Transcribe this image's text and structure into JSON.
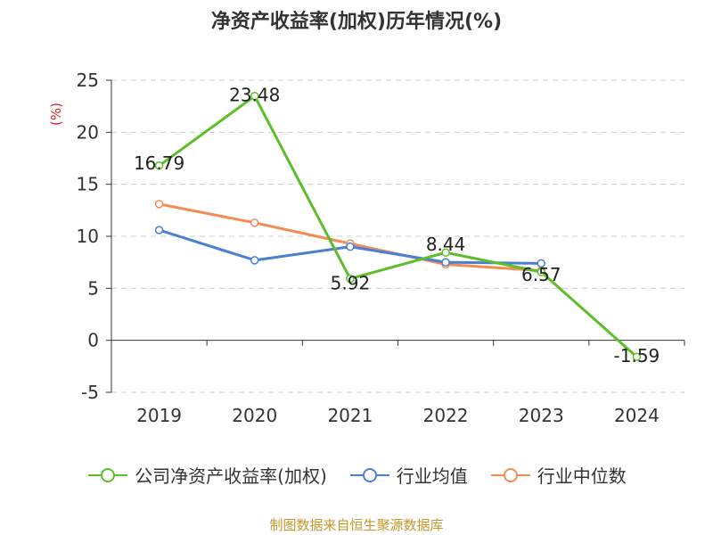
{
  "title": "净资产收益率(加权)历年情况(%)",
  "source": "制图数据来自恒生聚源数据库",
  "chart_data": {
    "type": "line",
    "title": "净资产收益率(加权)历年情况(%)",
    "ylabel": "(%)",
    "categories": [
      "2019",
      "2020",
      "2021",
      "2022",
      "2023",
      "2024"
    ],
    "ylim": [
      -5,
      25
    ],
    "yticks": [
      -5,
      0,
      5,
      10,
      15,
      20,
      25
    ],
    "grid": true,
    "legend_position": "bottom",
    "series": [
      {
        "name": "公司净资产收益率(加权)",
        "color": "#5cbf2a",
        "values": [
          16.79,
          23.48,
          5.92,
          8.44,
          6.57,
          -1.59
        ],
        "labels": [
          "16.79",
          "23.48",
          "5.92",
          "8.44",
          "6.57",
          "-1.59"
        ]
      },
      {
        "name": "行业均值",
        "color": "#4a7fd6",
        "values": [
          10.6,
          7.7,
          9.0,
          7.5,
          7.4,
          null
        ]
      },
      {
        "name": "行业中位数",
        "color": "#f28c55",
        "values": [
          13.1,
          11.3,
          9.3,
          7.3,
          6.7,
          null
        ]
      }
    ]
  }
}
